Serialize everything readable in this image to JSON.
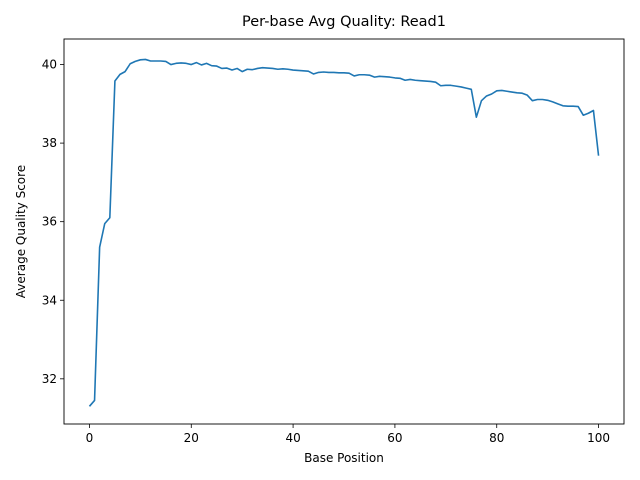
{
  "chart_data": {
    "type": "line",
    "title": "Per-base Avg Quality: Read1",
    "xlabel": "Base Position",
    "ylabel": "Average Quality Score",
    "xlim": [
      -5,
      105
    ],
    "ylim": [
      30.85,
      40.65
    ],
    "xticks": [
      0,
      20,
      40,
      60,
      80,
      100
    ],
    "yticks": [
      32,
      34,
      36,
      38,
      40
    ],
    "grid": false,
    "line_color": "#1f77b4",
    "series": [
      {
        "x": [
          0,
          1,
          2,
          3,
          4,
          5,
          6,
          7,
          8,
          9,
          10,
          11,
          12,
          13,
          14,
          15,
          16,
          17,
          18,
          19,
          20,
          21,
          22,
          23,
          24,
          25,
          26,
          27,
          28,
          29,
          30,
          31,
          32,
          33,
          34,
          35,
          36,
          37,
          38,
          39,
          40,
          41,
          42,
          43,
          44,
          45,
          46,
          47,
          48,
          49,
          50,
          51,
          52,
          53,
          54,
          55,
          56,
          57,
          58,
          59,
          60,
          61,
          62,
          63,
          64,
          65,
          66,
          67,
          68,
          69,
          70,
          71,
          72,
          73,
          74,
          75,
          76,
          77,
          78,
          79,
          80,
          81,
          82,
          83,
          84,
          85,
          86,
          87,
          88,
          89,
          90,
          91,
          92,
          93,
          94,
          95,
          96,
          97,
          98,
          99,
          100
        ],
        "y": [
          31.3,
          31.45,
          35.35,
          35.95,
          36.1,
          39.58,
          39.75,
          39.82,
          40.02,
          40.08,
          40.12,
          40.13,
          40.09,
          40.09,
          40.09,
          40.08,
          40.0,
          40.03,
          40.04,
          40.03,
          40.0,
          40.05,
          39.99,
          40.03,
          39.97,
          39.96,
          39.9,
          39.91,
          39.86,
          39.9,
          39.82,
          39.88,
          39.87,
          39.9,
          39.92,
          39.91,
          39.9,
          39.88,
          39.89,
          39.88,
          39.86,
          39.85,
          39.84,
          39.83,
          39.76,
          39.8,
          39.81,
          39.8,
          39.8,
          39.79,
          39.79,
          39.78,
          39.71,
          39.74,
          39.74,
          39.73,
          39.68,
          39.7,
          39.69,
          39.68,
          39.66,
          39.65,
          39.6,
          39.62,
          39.6,
          39.59,
          39.58,
          39.57,
          39.55,
          39.46,
          39.47,
          39.47,
          39.45,
          39.43,
          39.4,
          39.37,
          38.66,
          39.08,
          39.2,
          39.25,
          39.33,
          39.34,
          39.32,
          39.3,
          39.28,
          39.27,
          39.22,
          39.08,
          39.11,
          39.11,
          39.09,
          39.05,
          39.0,
          38.95,
          38.94,
          38.94,
          38.93,
          38.71,
          38.76,
          38.83,
          37.68
        ]
      }
    ]
  }
}
